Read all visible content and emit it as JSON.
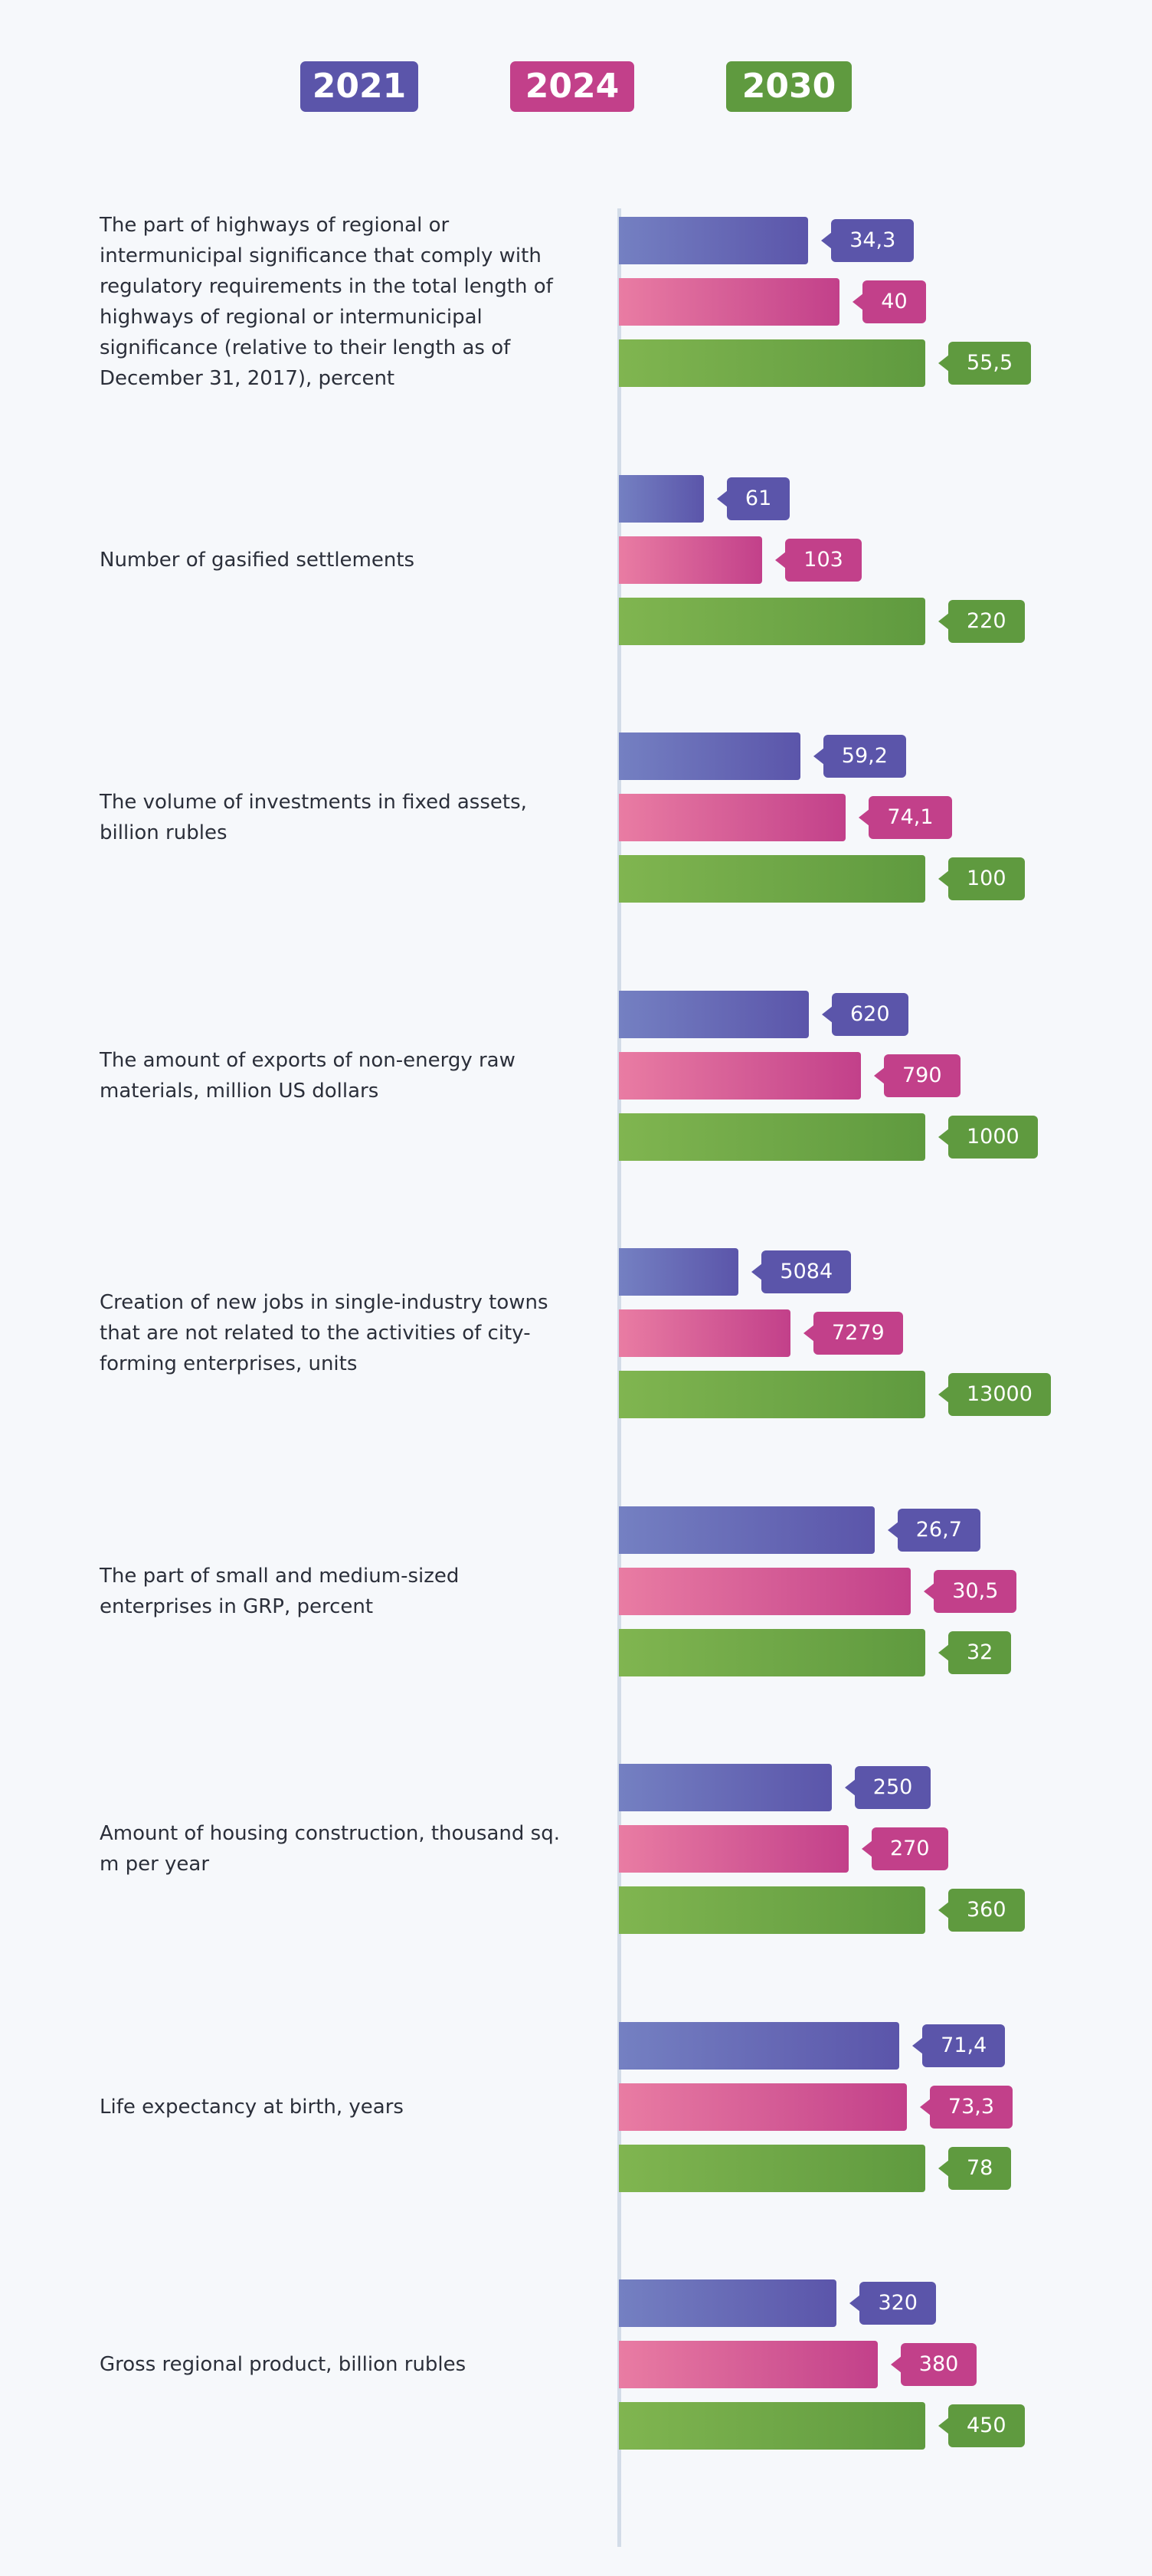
{
  "legend": [
    {
      "label": "2021",
      "color": "#5b55aa"
    },
    {
      "label": "2024",
      "color": "#c2408a"
    },
    {
      "label": "2030",
      "color": "#5f9a3f"
    }
  ],
  "chart_data": {
    "type": "bar",
    "orientation": "horizontal",
    "series_names": [
      "2021",
      "2024",
      "2030"
    ],
    "colors": {
      "2021": {
        "from": "#7480c2",
        "to": "#5b55aa"
      },
      "2024": {
        "from": "#e97ca3",
        "to": "#c2408a"
      },
      "2030": {
        "from": "#80b550",
        "to": "#5f9a3f"
      }
    },
    "groups": [
      {
        "label": "The part of highways of regional or intermunicipal significance that comply with regulatory requirements in the total length of highways of regional or intermunicipal significance (relative to their length as of December 31, 2017), percent",
        "values": [
          "34,3",
          "40",
          "55,5"
        ]
      },
      {
        "label": "Number of gasified settlements",
        "values": [
          "61",
          "103",
          "220"
        ]
      },
      {
        "label": "The volume of investments in fixed assets, billion rubles",
        "values": [
          "59,2",
          "74,1",
          "100"
        ]
      },
      {
        "label": "The amount of exports of non-energy raw materials, million US dollars",
        "values": [
          "620",
          "790",
          "1000"
        ]
      },
      {
        "label": "Creation of new jobs in single-industry towns that are not related to the activities of city-forming enterprises, units",
        "values": [
          "5084",
          "7279",
          "13000"
        ]
      },
      {
        "label": "The part of small and medium-sized enterprises in GRP, percent",
        "values": [
          "26,7",
          "30,5",
          "32"
        ]
      },
      {
        "label": "Amount of housing construction, thousand sq. m per year",
        "values": [
          "250",
          "270",
          "360"
        ]
      },
      {
        "label": "Life expectancy at birth, years",
        "values": [
          "71,4",
          "73,3",
          "78"
        ]
      },
      {
        "label": "Gross regional product, billion rubles",
        "values": [
          "320",
          "380",
          "450"
        ]
      }
    ]
  }
}
